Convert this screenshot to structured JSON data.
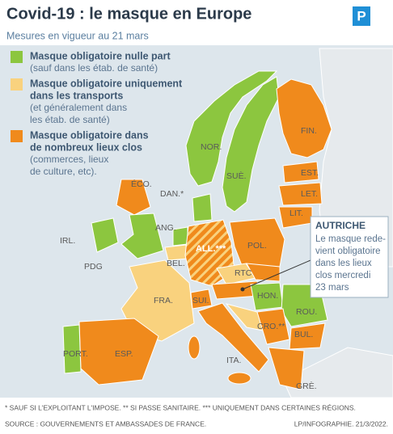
{
  "header": {
    "title": "Covid-19 : le masque en Europe",
    "subtitle": "Mesures en vigueur au 21 mars",
    "logo": "P"
  },
  "legend": [
    {
      "label": [
        "Masque obligatoire nulle part"
      ],
      "note": [
        "(sauf dans les étab. de santé)"
      ],
      "color": "#8cc63f"
    },
    {
      "label": [
        "Masque obligatoire uniquement",
        "dans les transports"
      ],
      "note": [
        "(et généralement dans",
        "les étab. de santé)"
      ],
      "color": "#f9d27e"
    },
    {
      "label": [
        "Masque obligatoire dans",
        "de nombreux lieux clos"
      ],
      "note": [
        "(commerces, lieux",
        "de culture, etc)."
      ],
      "color": "#f08a1c"
    }
  ],
  "countries": [
    "FIN.",
    "NOR.",
    "SUÈ.",
    "EST.",
    "LET.",
    "LIT.",
    "ÉCO.",
    "DAN.*",
    "ANG.",
    "IRL.",
    "PDG",
    "BEL.",
    "ALL.***",
    "POL.",
    "RTC",
    "FRA.",
    "SUI.",
    "HON.",
    "ROU.",
    "CRO.**",
    "BUL.",
    "PORT.",
    "ESP.",
    "ITA.",
    "GRÈ."
  ],
  "callout": {
    "title": "AUTRICHE",
    "text": [
      "Le masque rede-",
      "vient obligatoire",
      "dans les lieux",
      "clos mercredi",
      "23 mars"
    ]
  },
  "footer": {
    "footnotes": "* SAUF SI L'EXPLOITANT L'IMPOSE.   ** SI PASSE SANITAIRE.   *** UNIQUEMENT DANS CERTAINES RÉGIONS.",
    "source": "SOURCE : GOUVERNEMENTS ET AMBASSADES DE FRANCE.",
    "credit": "LP/INFOGRAPHIE. 21/3/2022."
  }
}
